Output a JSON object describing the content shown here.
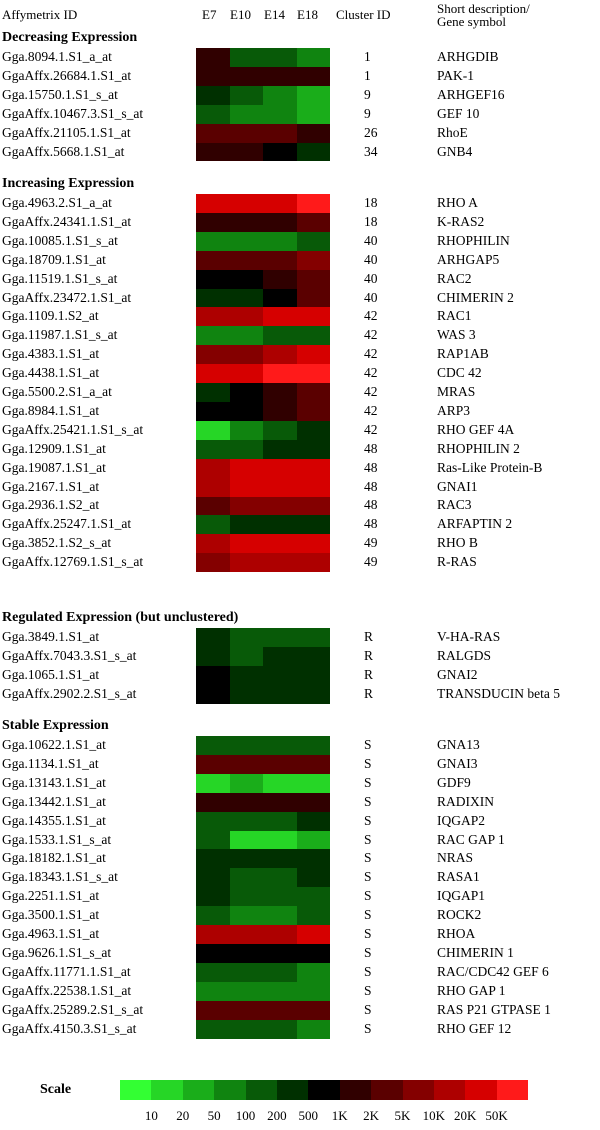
{
  "chart_data": {
    "type": "heatmap",
    "columns": [
      "E7",
      "E10",
      "E14",
      "E18"
    ],
    "header": {
      "id": "Affymetrix ID",
      "cluster": "Cluster ID",
      "desc1": "Short description/",
      "desc2": "Gene symbol"
    },
    "scale": {
      "title": "Scale",
      "colors": [
        "#33ff33",
        "#26d626",
        "#1aad1a",
        "#108410",
        "#085a08",
        "#003000",
        "#000000",
        "#300000",
        "#5a0000",
        "#840000",
        "#ad0000",
        "#d60000",
        "#ff1a1a"
      ],
      "ticks": [
        "10",
        "20",
        "50",
        "100",
        "200",
        "500",
        "1K",
        "2K",
        "5K",
        "10K",
        "20K",
        "50K"
      ]
    },
    "sections": [
      {
        "title": "Decreasing Expression",
        "rows": [
          {
            "id": "Gga.8094.1.S1_a_at",
            "cluster": "1",
            "gene": "ARHGDIB",
            "values": [
              7,
              4,
              4,
              3
            ]
          },
          {
            "id": "GgaAffx.26684.1.S1_at",
            "cluster": "1",
            "gene": "PAK-1",
            "values": [
              7,
              7,
              7,
              7
            ]
          },
          {
            "id": "Gga.15750.1.S1_s_at",
            "cluster": "9",
            "gene": "ARHGEF16",
            "values": [
              5,
              4,
              3,
              2
            ]
          },
          {
            "id": "GgaAffx.10467.3.S1_s_at",
            "cluster": "9",
            "gene": "GEF 10",
            "values": [
              4,
              3,
              3,
              2
            ]
          },
          {
            "id": "GgaAffx.21105.1.S1_at",
            "cluster": "26",
            "gene": "RhoE",
            "values": [
              8,
              8,
              8,
              7
            ]
          },
          {
            "id": "GgaAffx.5668.1.S1_at",
            "cluster": "34",
            "gene": "GNB4",
            "values": [
              7,
              7,
              6,
              5
            ]
          }
        ]
      },
      {
        "title": "Increasing Expression",
        "rows": [
          {
            "id": "Gga.4963.2.S1_a_at",
            "cluster": "18",
            "gene": "RHO  A",
            "values": [
              11,
              11,
              11,
              12
            ]
          },
          {
            "id": "GgaAffx.24341.1.S1_at",
            "cluster": "18",
            "gene": "K-RAS2",
            "values": [
              7,
              7,
              7,
              8
            ]
          },
          {
            "id": "Gga.10085.1.S1_s_at",
            "cluster": "40",
            "gene": "RHOPHILIN",
            "values": [
              3,
              3,
              3,
              4
            ]
          },
          {
            "id": "Gga.18709.1.S1_at",
            "cluster": "40",
            "gene": "ARHGAP5",
            "values": [
              8,
              8,
              8,
              9
            ]
          },
          {
            "id": "Gga.11519.1.S1_s_at",
            "cluster": "40",
            "gene": "RAC2",
            "values": [
              6,
              6,
              7,
              8
            ]
          },
          {
            "id": "GgaAffx.23472.1.S1_at",
            "cluster": "40",
            "gene": "CHIMERIN 2",
            "values": [
              5,
              5,
              6,
              8
            ]
          },
          {
            "id": "Gga.1109.1.S2_at",
            "cluster": "42",
            "gene": "RAC1",
            "values": [
              10,
              10,
              11,
              11
            ]
          },
          {
            "id": "Gga.11987.1.S1_s_at",
            "cluster": "42",
            "gene": "WAS 3",
            "values": [
              3,
              3,
              4,
              4
            ]
          },
          {
            "id": "Gga.4383.1.S1_at",
            "cluster": "42",
            "gene": "RAP1AB",
            "values": [
              9,
              9,
              10,
              11
            ]
          },
          {
            "id": "Gga.4438.1.S1_at",
            "cluster": "42",
            "gene": "CDC 42",
            "values": [
              11,
              11,
              12,
              12
            ]
          },
          {
            "id": "Gga.5500.2.S1_a_at",
            "cluster": "42",
            "gene": "MRAS",
            "values": [
              5,
              6,
              7,
              8
            ]
          },
          {
            "id": "Gga.8984.1.S1_at",
            "cluster": "42",
            "gene": "ARP3",
            "values": [
              6,
              6,
              7,
              8
            ]
          },
          {
            "id": "GgaAffx.25421.1.S1_s_at",
            "cluster": "42",
            "gene": "RHO GEF 4A",
            "values": [
              1,
              3,
              4,
              5
            ]
          },
          {
            "id": "Gga.12909.1.S1_at",
            "cluster": "48",
            "gene": "RHOPHILIN 2",
            "values": [
              4,
              4,
              5,
              5
            ]
          },
          {
            "id": "Gga.19087.1.S1_at",
            "cluster": "48",
            "gene": "Ras-Like Protein-B",
            "values": [
              10,
              11,
              11,
              11
            ]
          },
          {
            "id": "Gga.2167.1.S1_at",
            "cluster": "48",
            "gene": "GNAI1",
            "values": [
              10,
              11,
              11,
              11
            ]
          },
          {
            "id": "Gga.2936.1.S2_at",
            "cluster": "48",
            "gene": "RAC3",
            "values": [
              8,
              9,
              9,
              9
            ]
          },
          {
            "id": "GgaAffx.25247.1.S1_at",
            "cluster": "48",
            "gene": "ARFAPTIN 2",
            "values": [
              4,
              5,
              5,
              5
            ]
          },
          {
            "id": "Gga.3852.1.S2_s_at",
            "cluster": "49",
            "gene": "RHO  B",
            "values": [
              10,
              11,
              11,
              11
            ]
          },
          {
            "id": "GgaAffx.12769.1.S1_s_at",
            "cluster": "49",
            "gene": "R-RAS",
            "values": [
              9,
              10,
              10,
              10
            ]
          }
        ]
      },
      {
        "title": "Regulated Expression (but unclustered)",
        "rows": [
          {
            "id": "Gga.3849.1.S1_at",
            "cluster": "R",
            "gene": "V-HA-RAS",
            "values": [
              5,
              4,
              4,
              4
            ]
          },
          {
            "id": "GgaAffx.7043.3.S1_s_at",
            "cluster": "R",
            "gene": "RALGDS",
            "values": [
              5,
              4,
              5,
              5
            ]
          },
          {
            "id": "Gga.1065.1.S1_at",
            "cluster": "R",
            "gene": "GNAI2",
            "values": [
              6,
              5,
              5,
              5
            ]
          },
          {
            "id": "GgaAffx.2902.2.S1_s_at",
            "cluster": "R",
            "gene": "TRANSDUCIN beta  5",
            "values": [
              6,
              5,
              5,
              5
            ]
          }
        ]
      },
      {
        "title": "Stable Expression",
        "rows": [
          {
            "id": "Gga.10622.1.S1_at",
            "cluster": "S",
            "gene": "GNA13",
            "values": [
              4,
              4,
              4,
              4
            ]
          },
          {
            "id": "Gga.1134.1.S1_at",
            "cluster": "S",
            "gene": "GNAI3",
            "values": [
              8,
              8,
              8,
              8
            ]
          },
          {
            "id": "Gga.13143.1.S1_at",
            "cluster": "S",
            "gene": "GDF9",
            "values": [
              1,
              2,
              1,
              1
            ]
          },
          {
            "id": "Gga.13442.1.S1_at",
            "cluster": "S",
            "gene": "RADIXIN",
            "values": [
              7,
              7,
              7,
              7
            ]
          },
          {
            "id": "Gga.14355.1.S1_at",
            "cluster": "S",
            "gene": "IQGAP2",
            "values": [
              4,
              4,
              4,
              5
            ]
          },
          {
            "id": "Gga.1533.1.S1_s_at",
            "cluster": "S",
            "gene": "RAC GAP 1",
            "values": [
              4,
              1,
              1,
              2
            ]
          },
          {
            "id": "Gga.18182.1.S1_at",
            "cluster": "S",
            "gene": "NRAS",
            "values": [
              5,
              5,
              5,
              5
            ]
          },
          {
            "id": "Gga.18343.1.S1_s_at",
            "cluster": "S",
            "gene": "RASA1",
            "values": [
              5,
              4,
              4,
              5
            ]
          },
          {
            "id": "Gga.2251.1.S1_at",
            "cluster": "S",
            "gene": "IQGAP1",
            "values": [
              5,
              4,
              4,
              4
            ]
          },
          {
            "id": "Gga.3500.1.S1_at",
            "cluster": "S",
            "gene": "ROCK2",
            "values": [
              4,
              3,
              3,
              4
            ]
          },
          {
            "id": "Gga.4963.1.S1_at",
            "cluster": "S",
            "gene": "RHOA",
            "values": [
              10,
              10,
              10,
              11
            ]
          },
          {
            "id": "Gga.9626.1.S1_s_at",
            "cluster": "S",
            "gene": "CHIMERIN 1",
            "values": [
              6,
              6,
              6,
              6
            ]
          },
          {
            "id": "GgaAffx.11771.1.S1_at",
            "cluster": "S",
            "gene": "RAC/CDC42 GEF 6",
            "values": [
              4,
              4,
              4,
              3
            ]
          },
          {
            "id": "GgaAffx.22538.1.S1_at",
            "cluster": "S",
            "gene": "RHO GAP  1",
            "values": [
              3,
              3,
              3,
              3
            ]
          },
          {
            "id": "GgaAffx.25289.2.S1_s_at",
            "cluster": "S",
            "gene": "RAS P21 GTPASE  1",
            "values": [
              8,
              8,
              8,
              8
            ]
          },
          {
            "id": "GgaAffx.4150.3.S1_s_at",
            "cluster": "S",
            "gene": "RHO GEF 12",
            "values": [
              4,
              4,
              4,
              3
            ]
          }
        ]
      }
    ]
  }
}
